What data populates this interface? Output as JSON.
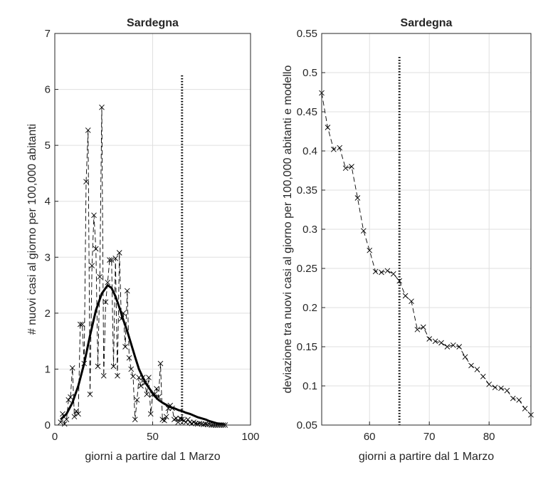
{
  "chart_data": [
    {
      "type": "line",
      "title": "Sardegna",
      "xlabel": "giorni a partire dal 1 Marzo",
      "ylabel": "# nuovi casi al giorno per 100,000 abitanti",
      "xlim": [
        0,
        100
      ],
      "ylim": [
        0,
        7
      ],
      "xticks": [
        0,
        50,
        100
      ],
      "yticks": [
        0,
        1,
        2,
        3,
        4,
        5,
        6,
        7
      ],
      "grid": true,
      "vline": {
        "x": 65,
        "y_top": 6.25,
        "style": "dotted"
      },
      "series": [
        {
          "style": "dashed-x-markers",
          "x": [
            3,
            4,
            5,
            6,
            7,
            8,
            9,
            10,
            11,
            12,
            13,
            14,
            15,
            16,
            17,
            18,
            19,
            20,
            21,
            22,
            23,
            24,
            25,
            26,
            27,
            28,
            29,
            30,
            31,
            32,
            33,
            34,
            35,
            36,
            37,
            38,
            39,
            40,
            41,
            42,
            43,
            44,
            45,
            46,
            47,
            48,
            49,
            50,
            51,
            52,
            53,
            54,
            55,
            56,
            57,
            58,
            59,
            60,
            61,
            62,
            63,
            64,
            65,
            66,
            67,
            68,
            69,
            70,
            71,
            72,
            73,
            74,
            75,
            76,
            77,
            78,
            79,
            80,
            81,
            82,
            83,
            84,
            85,
            86,
            87
          ],
          "y": [
            0.05,
            0.2,
            0.02,
            0.1,
            0.45,
            0.5,
            1.02,
            0.15,
            0.25,
            0.2,
            1.8,
            1.8,
            1.1,
            4.35,
            5.27,
            0.55,
            2.85,
            3.75,
            3.15,
            1.05,
            2.65,
            5.68,
            0.88,
            2.2,
            2.55,
            2.95,
            2.95,
            1.05,
            2.98,
            0.88,
            3.08,
            1.9,
            2.0,
            1.4,
            2.4,
            1.2,
            1.0,
            0.87,
            0.1,
            0.45,
            0.85,
            0.7,
            0.85,
            0.75,
            0.55,
            0.85,
            0.2,
            0.55,
            0.55,
            0.65,
            0.5,
            1.1,
            0.1,
            0.08,
            0.15,
            0.3,
            0.35,
            0.3,
            0.1,
            0.12,
            0.05,
            0.12,
            0.1,
            0.08,
            0.05,
            0.1,
            0.05,
            0.03,
            0.05,
            0.03,
            0.02,
            0.03,
            0.02,
            0.01,
            0.02,
            0.01,
            0.01,
            0.0,
            0.0,
            0.0,
            0.0,
            0.0,
            0.0,
            0.0,
            0.0
          ]
        },
        {
          "style": "solid-thick",
          "x": [
            3,
            6,
            9,
            12,
            15,
            18,
            21,
            24,
            27,
            29,
            31,
            33,
            35,
            37,
            39,
            41,
            43,
            45,
            47,
            49,
            51,
            53,
            55,
            57,
            59,
            61,
            63,
            65,
            67,
            69,
            71,
            73,
            75,
            77,
            79,
            81,
            83,
            85,
            87
          ],
          "y": [
            0.1,
            0.2,
            0.4,
            0.7,
            1.1,
            1.6,
            2.05,
            2.35,
            2.5,
            2.45,
            2.3,
            2.1,
            1.88,
            1.68,
            1.45,
            1.22,
            1.0,
            0.85,
            0.72,
            0.62,
            0.52,
            0.45,
            0.4,
            0.36,
            0.32,
            0.3,
            0.27,
            0.25,
            0.22,
            0.2,
            0.17,
            0.14,
            0.12,
            0.1,
            0.07,
            0.05,
            0.03,
            0.02,
            0.01
          ]
        }
      ]
    },
    {
      "type": "line",
      "title": "Sardegna",
      "xlabel": "giorni a partire dal 1 Marzo",
      "ylabel": "deviazione tra nuovi casi al giorno per 100,000 abitanti e modello",
      "xlim": [
        52,
        87
      ],
      "ylim": [
        0.05,
        0.55
      ],
      "xticks": [
        60,
        70,
        80
      ],
      "yticks": [
        0.05,
        0.1,
        0.15,
        0.2,
        0.25,
        0.3,
        0.35,
        0.4,
        0.45,
        0.5,
        0.55
      ],
      "grid": true,
      "vline": {
        "x": 65,
        "y_top": 0.52,
        "style": "dotted"
      },
      "series": [
        {
          "style": "dashed-x-markers",
          "x": [
            52,
            53,
            54,
            55,
            56,
            57,
            58,
            59,
            60,
            61,
            62,
            63,
            64,
            65,
            66,
            67,
            68,
            69,
            70,
            71,
            72,
            73,
            74,
            75,
            76,
            77,
            78,
            79,
            80,
            81,
            82,
            83,
            84,
            85,
            86,
            87
          ],
          "y": [
            0.474,
            0.43,
            0.402,
            0.404,
            0.378,
            0.38,
            0.34,
            0.298,
            0.273,
            0.246,
            0.245,
            0.247,
            0.243,
            0.234,
            0.215,
            0.208,
            0.172,
            0.175,
            0.16,
            0.157,
            0.155,
            0.15,
            0.152,
            0.15,
            0.137,
            0.126,
            0.121,
            0.112,
            0.102,
            0.098,
            0.097,
            0.094,
            0.084,
            0.082,
            0.071,
            0.063
          ]
        }
      ]
    }
  ]
}
